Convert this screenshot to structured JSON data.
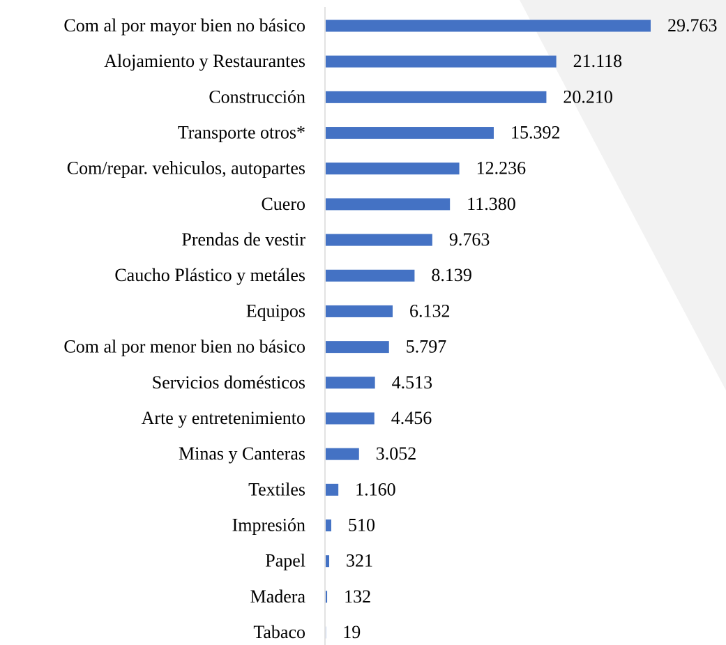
{
  "chart_data": {
    "type": "bar",
    "orientation": "horizontal",
    "color": "#4472c4",
    "categories": [
      "Com al por mayor bien no básico",
      "Alojamiento y Restaurantes",
      "Construcción",
      "Transporte otros*",
      "Com/repar. vehiculos, autopartes",
      "Cuero",
      "Prendas de vestir",
      "Caucho Plástico y metáles",
      "Equipos",
      "Com al por menor bien no básico",
      "Servicios domésticos",
      "Arte y entretenimiento",
      "Minas y Canteras",
      "Textiles",
      "Impresión",
      "Papel",
      "Madera",
      "Tabaco"
    ],
    "values": [
      29763,
      21118,
      20210,
      15392,
      12236,
      11380,
      9763,
      8139,
      6132,
      5797,
      4513,
      4456,
      3052,
      1160,
      510,
      321,
      132,
      19
    ],
    "value_labels": [
      "29.763",
      "21.118",
      "20.210",
      "15.392",
      "12.236",
      "11.380",
      "9.763",
      "8.139",
      "6.132",
      "5.797",
      "4.513",
      "4.456",
      "3.052",
      "1.160",
      "510",
      "321",
      "132",
      "19"
    ]
  }
}
